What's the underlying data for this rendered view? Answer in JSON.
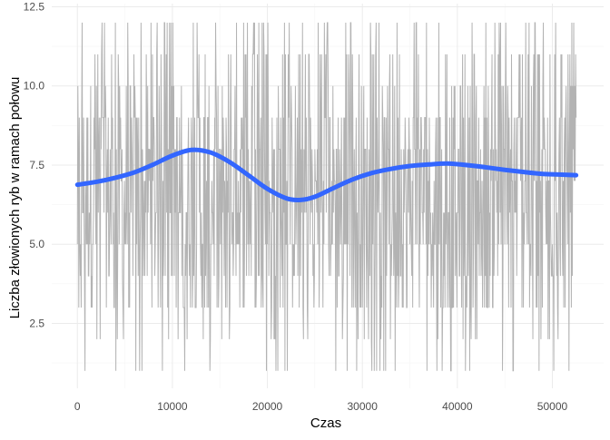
{
  "chart_data": {
    "type": "line",
    "title": "",
    "xlabel": "Czas",
    "ylabel": "Liczba złowionych ryb w ramach połowu",
    "xlim": [
      -2700,
      55400
    ],
    "ylim": [
      0.45,
      12.6
    ],
    "x_ticks": [
      0,
      10000,
      20000,
      30000,
      40000,
      50000
    ],
    "x_tick_labels": [
      "0",
      "10000",
      "20000",
      "30000",
      "40000",
      "50000"
    ],
    "y_ticks": [
      2.5,
      5.0,
      7.5,
      10.0,
      12.5
    ],
    "y_tick_labels": [
      "2.5",
      "5.0",
      "7.5",
      "10.0",
      "12.5"
    ],
    "grid": true,
    "legend": "none",
    "series": [
      {
        "kind": "raw",
        "color": "#b3b3b3",
        "x_range": [
          0,
          52500
        ],
        "y_range": [
          1,
          12
        ],
        "note_values": "integer counts per catch, oscillating between 1 and 12 across the whole time range"
      },
      {
        "kind": "smooth",
        "color": "#3366ff",
        "x": [
          0,
          2000,
          4000,
          6000,
          8000,
          10000,
          12000,
          14000,
          16000,
          18000,
          20000,
          22000,
          23500,
          25000,
          27000,
          29000,
          31000,
          33000,
          35000,
          37000,
          39000,
          41000,
          43000,
          45000,
          47000,
          49000,
          51000,
          52500
        ],
        "y": [
          6.88,
          6.97,
          7.1,
          7.27,
          7.52,
          7.8,
          7.98,
          7.9,
          7.6,
          7.18,
          6.75,
          6.45,
          6.4,
          6.5,
          6.78,
          7.05,
          7.25,
          7.38,
          7.47,
          7.52,
          7.55,
          7.5,
          7.43,
          7.35,
          7.28,
          7.22,
          7.2,
          7.18
        ]
      }
    ]
  }
}
